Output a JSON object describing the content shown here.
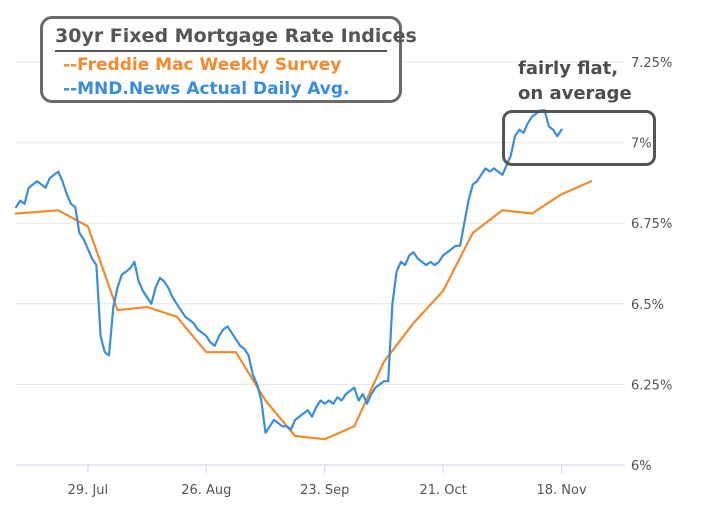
{
  "chart_data": {
    "type": "line",
    "title": "30yr Fixed Mortgage Rate Indices",
    "annotation": [
      "fairly flat,",
      "on average"
    ],
    "x_tick_labels": [
      "29. Jul",
      "26. Aug",
      "23. Sep",
      "21. Oct",
      "18. Nov"
    ],
    "y_tick_labels": [
      "6%",
      "6.25%",
      "6.5%",
      "6.75%",
      "7%",
      "7.25%"
    ],
    "y_ticks": [
      6.0,
      6.25,
      6.5,
      6.75,
      7.0,
      7.25
    ],
    "ylim": [
      6.0,
      7.25
    ],
    "xlim": [
      -17,
      127
    ],
    "x_ticks": [
      0,
      28,
      56,
      84,
      112
    ],
    "grid": true,
    "series": [
      {
        "name": "--Freddie Mac Weekly Survey",
        "color": "#F28A2E",
        "x": [
          -17,
          -7,
          0,
          7,
          14,
          21,
          28,
          35,
          42,
          49,
          56,
          63,
          70,
          77,
          84,
          91,
          98,
          105,
          112,
          119
        ],
        "y": [
          6.78,
          6.79,
          6.74,
          6.48,
          6.49,
          6.46,
          6.35,
          6.35,
          6.2,
          6.09,
          6.08,
          6.12,
          6.32,
          6.44,
          6.54,
          6.72,
          6.79,
          6.78,
          6.84,
          6.88
        ]
      },
      {
        "name": "--MND.News Actual Daily Avg.",
        "color": "#3A8DDE",
        "x": [
          -17,
          -16,
          -15,
          -14,
          -13,
          -12,
          -11,
          -10,
          -9,
          -8,
          -7,
          -6,
          -5,
          -4,
          -3,
          -2,
          -1,
          0,
          1,
          2,
          3,
          4,
          5,
          6,
          7,
          8,
          9,
          10,
          11,
          12,
          13,
          14,
          15,
          16,
          17,
          18,
          19,
          20,
          21,
          22,
          23,
          24,
          25,
          26,
          27,
          28,
          29,
          30,
          31,
          32,
          33,
          34,
          35,
          36,
          37,
          38,
          39,
          40,
          41,
          42,
          43,
          44,
          45,
          46,
          47,
          48,
          49,
          50,
          51,
          52,
          53,
          54,
          55,
          56,
          57,
          58,
          59,
          60,
          61,
          62,
          63,
          64,
          65,
          66,
          67,
          68,
          69,
          70,
          71,
          72,
          73,
          74,
          75,
          76,
          77,
          78,
          79,
          80,
          81,
          82,
          83,
          84,
          85,
          86,
          87,
          88,
          89,
          90,
          91,
          92,
          93,
          94,
          95,
          96,
          97,
          98,
          99,
          100,
          101,
          102,
          103,
          104,
          105,
          106,
          107,
          108,
          109,
          110,
          111,
          112
        ],
        "y": [
          6.8,
          6.82,
          6.81,
          6.86,
          6.87,
          6.88,
          6.87,
          6.86,
          6.89,
          6.9,
          6.91,
          6.88,
          6.84,
          6.81,
          6.8,
          6.72,
          6.7,
          6.67,
          6.64,
          6.62,
          6.4,
          6.35,
          6.34,
          6.49,
          6.55,
          6.59,
          6.6,
          6.61,
          6.63,
          6.57,
          6.54,
          6.52,
          6.5,
          6.55,
          6.58,
          6.57,
          6.55,
          6.52,
          6.5,
          6.48,
          6.46,
          6.45,
          6.44,
          6.42,
          6.41,
          6.4,
          6.38,
          6.37,
          6.4,
          6.42,
          6.43,
          6.41,
          6.39,
          6.37,
          6.36,
          6.34,
          6.28,
          6.25,
          6.2,
          6.1,
          6.12,
          6.14,
          6.13,
          6.12,
          6.12,
          6.11,
          6.14,
          6.15,
          6.16,
          6.17,
          6.15,
          6.18,
          6.2,
          6.19,
          6.2,
          6.19,
          6.21,
          6.2,
          6.22,
          6.23,
          6.24,
          6.2,
          6.22,
          6.19,
          6.22,
          6.24,
          6.25,
          6.26,
          6.26,
          6.5,
          6.6,
          6.63,
          6.62,
          6.65,
          6.66,
          6.64,
          6.63,
          6.62,
          6.63,
          6.62,
          6.63,
          6.65,
          6.66,
          6.67,
          6.68,
          6.68,
          6.75,
          6.82,
          6.87,
          6.88,
          6.9,
          6.92,
          6.91,
          6.92,
          6.91,
          6.9,
          6.93,
          6.96,
          7.02,
          7.04,
          7.03,
          7.06,
          7.08,
          7.09,
          7.1,
          7.1,
          7.05,
          7.04,
          7.02,
          7.04
        ]
      }
    ]
  }
}
